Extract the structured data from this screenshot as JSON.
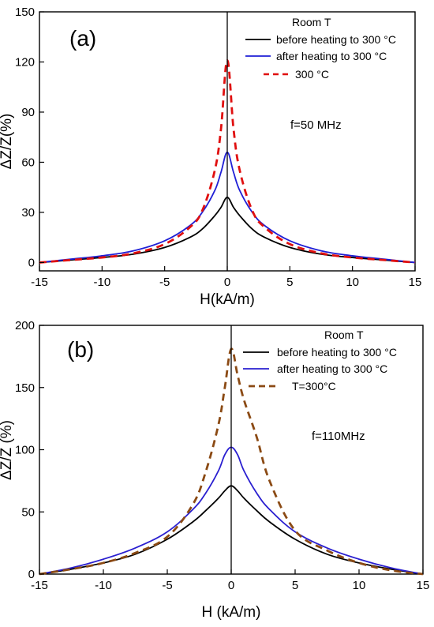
{
  "chart_data": [
    {
      "type": "line",
      "panel_label": "(a)",
      "xlabel": "H(kA/m)",
      "ylabel": "ΔZ/Z(%)",
      "xlim": [
        -15,
        15
      ],
      "ylim": [
        -5,
        150
      ],
      "xticks": [
        -15,
        -10,
        -5,
        0,
        5,
        10,
        15
      ],
      "yticks": [
        0,
        30,
        60,
        90,
        120,
        150
      ],
      "grid": false,
      "legend_title": "Room T",
      "legend_position": "top-right",
      "annotation": "f=50 MHz",
      "vline_x": 0,
      "series": [
        {
          "name": "before heating to 300 °C",
          "color": "#000000",
          "dash": "solid",
          "x": [
            -15,
            -12.5,
            -10,
            -7.5,
            -5,
            -3,
            -2,
            -1,
            -0.5,
            0,
            0.5,
            1,
            2,
            3,
            5,
            7.5,
            10,
            12.5,
            15
          ],
          "y": [
            0,
            1.5,
            3,
            5,
            9,
            15,
            20,
            28,
            33,
            39,
            33,
            28,
            20,
            15,
            9,
            5,
            3,
            1.5,
            0
          ]
        },
        {
          "name": "after heating to 300 °C",
          "color": "#1f1fd6",
          "dash": "solid",
          "x": [
            -15,
            -12.5,
            -10,
            -7.5,
            -5,
            -3,
            -2,
            -1,
            -0.5,
            0,
            0.5,
            1,
            2,
            3,
            5,
            7.5,
            10,
            12.5,
            15
          ],
          "y": [
            0,
            2,
            4,
            7,
            13,
            22,
            30,
            43,
            54,
            66,
            54,
            43,
            30,
            22,
            13,
            7,
            4,
            2,
            0
          ]
        },
        {
          "name": "300 °C",
          "color": "#e01010",
          "dash": "dashed",
          "x": [
            -15,
            -12.5,
            -10,
            -7.5,
            -5,
            -3,
            -2,
            -1,
            -0.5,
            0,
            0.5,
            1,
            2,
            3,
            5,
            7.5,
            10,
            12.5,
            15
          ],
          "y": [
            0,
            1.5,
            3,
            5.5,
            11,
            21,
            31,
            55,
            80,
            121,
            80,
            55,
            31,
            21,
            11,
            5.5,
            3,
            1.5,
            0
          ]
        }
      ]
    },
    {
      "type": "line",
      "panel_label": "(b)",
      "xlabel": "H (kA/m)",
      "ylabel": "ΔZ/Z (%)",
      "xlim": [
        -15,
        15
      ],
      "ylim": [
        0,
        200
      ],
      "xticks": [
        -15,
        -10,
        -5,
        0,
        5,
        10,
        15
      ],
      "yticks": [
        0,
        50,
        100,
        150,
        200
      ],
      "grid": false,
      "legend_title": "Room T",
      "legend_position": "top-right",
      "annotation": "f=110MHz",
      "vline_x": 0,
      "series": [
        {
          "name": "before heating to 300 °C",
          "color": "#000000",
          "dash": "solid",
          "x": [
            -15,
            -12.5,
            -10,
            -7.5,
            -5,
            -3,
            -2,
            -1,
            -0.5,
            0,
            0.5,
            1,
            2,
            3,
            5,
            7.5,
            10,
            12.5,
            15
          ],
          "y": [
            0,
            4,
            9,
            16,
            28,
            42,
            51,
            61,
            67,
            71,
            67,
            61,
            51,
            42,
            28,
            16,
            9,
            4,
            0
          ]
        },
        {
          "name": "after heating to 300 °C",
          "color": "#2a1fd0",
          "dash": "solid",
          "x": [
            -15,
            -12.5,
            -10,
            -7.5,
            -5,
            -3,
            -2,
            -1,
            -0.5,
            0,
            0.5,
            1,
            2,
            3,
            5,
            7.5,
            10,
            12.5,
            15
          ],
          "y": [
            0,
            5,
            12,
            21,
            34,
            52,
            65,
            83,
            96,
            102,
            96,
            83,
            65,
            52,
            34,
            21,
            12,
            5,
            0
          ]
        },
        {
          "name": "T=300°C",
          "color": "#8b4a14",
          "dash": "dashed",
          "x": [
            -15,
            -12.5,
            -10,
            -7.5,
            -5,
            -3,
            -2,
            -1,
            -0.5,
            0,
            0.5,
            1,
            2,
            3,
            5,
            7.5,
            10,
            12.5,
            15
          ],
          "y": [
            0,
            4,
            9,
            17,
            30,
            56,
            82,
            120,
            150,
            181,
            160,
            140,
            110,
            75,
            35,
            19,
            9,
            3,
            0
          ]
        }
      ]
    }
  ]
}
